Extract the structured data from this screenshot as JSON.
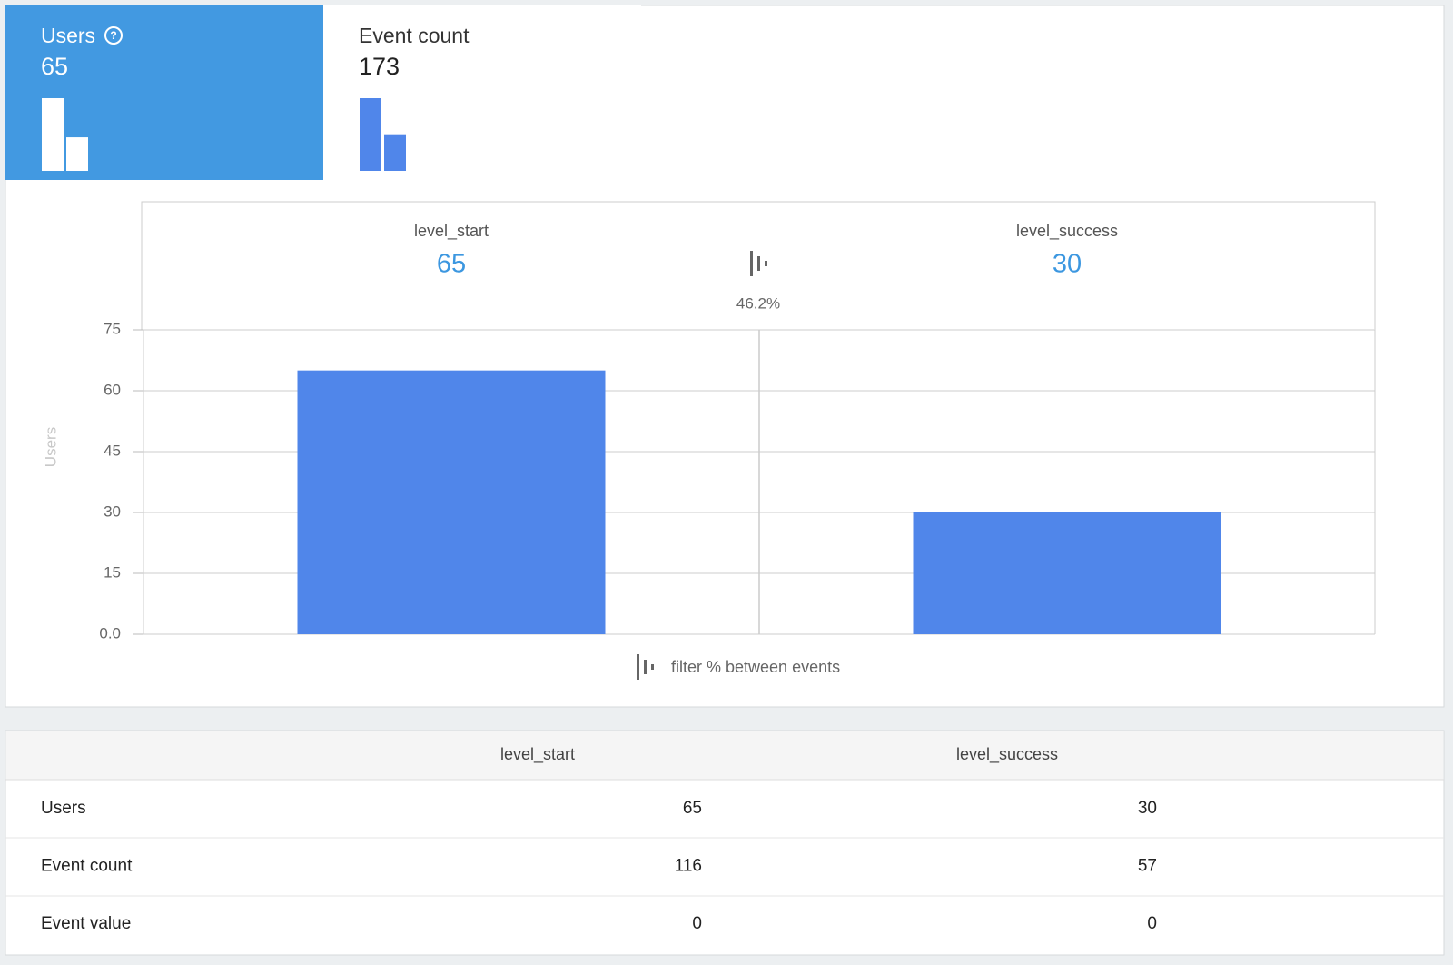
{
  "tabs": [
    {
      "label": "Users",
      "value": 65
    },
    {
      "label": "Event count",
      "value": 173
    }
  ],
  "chart_data": {
    "type": "bar",
    "y_label": "Users",
    "categories": [
      "level_start",
      "level_success"
    ],
    "values": [
      65,
      30
    ],
    "color": "#5086ea",
    "ylim": [
      0,
      75
    ],
    "yticks": [
      {
        "value": 0,
        "label": "0.0"
      },
      15,
      30,
      45,
      60,
      75
    ],
    "grid": true,
    "conversion_label": "46.2%",
    "filter_label": "filter % between events"
  },
  "table": {
    "columns": [
      "level_start",
      "level_success"
    ],
    "rows": [
      {
        "label": "Users",
        "values": [
          65,
          30
        ]
      },
      {
        "label": "Event count",
        "values": [
          116,
          57
        ]
      },
      {
        "label": "Event value",
        "values": [
          0,
          0
        ]
      }
    ]
  }
}
